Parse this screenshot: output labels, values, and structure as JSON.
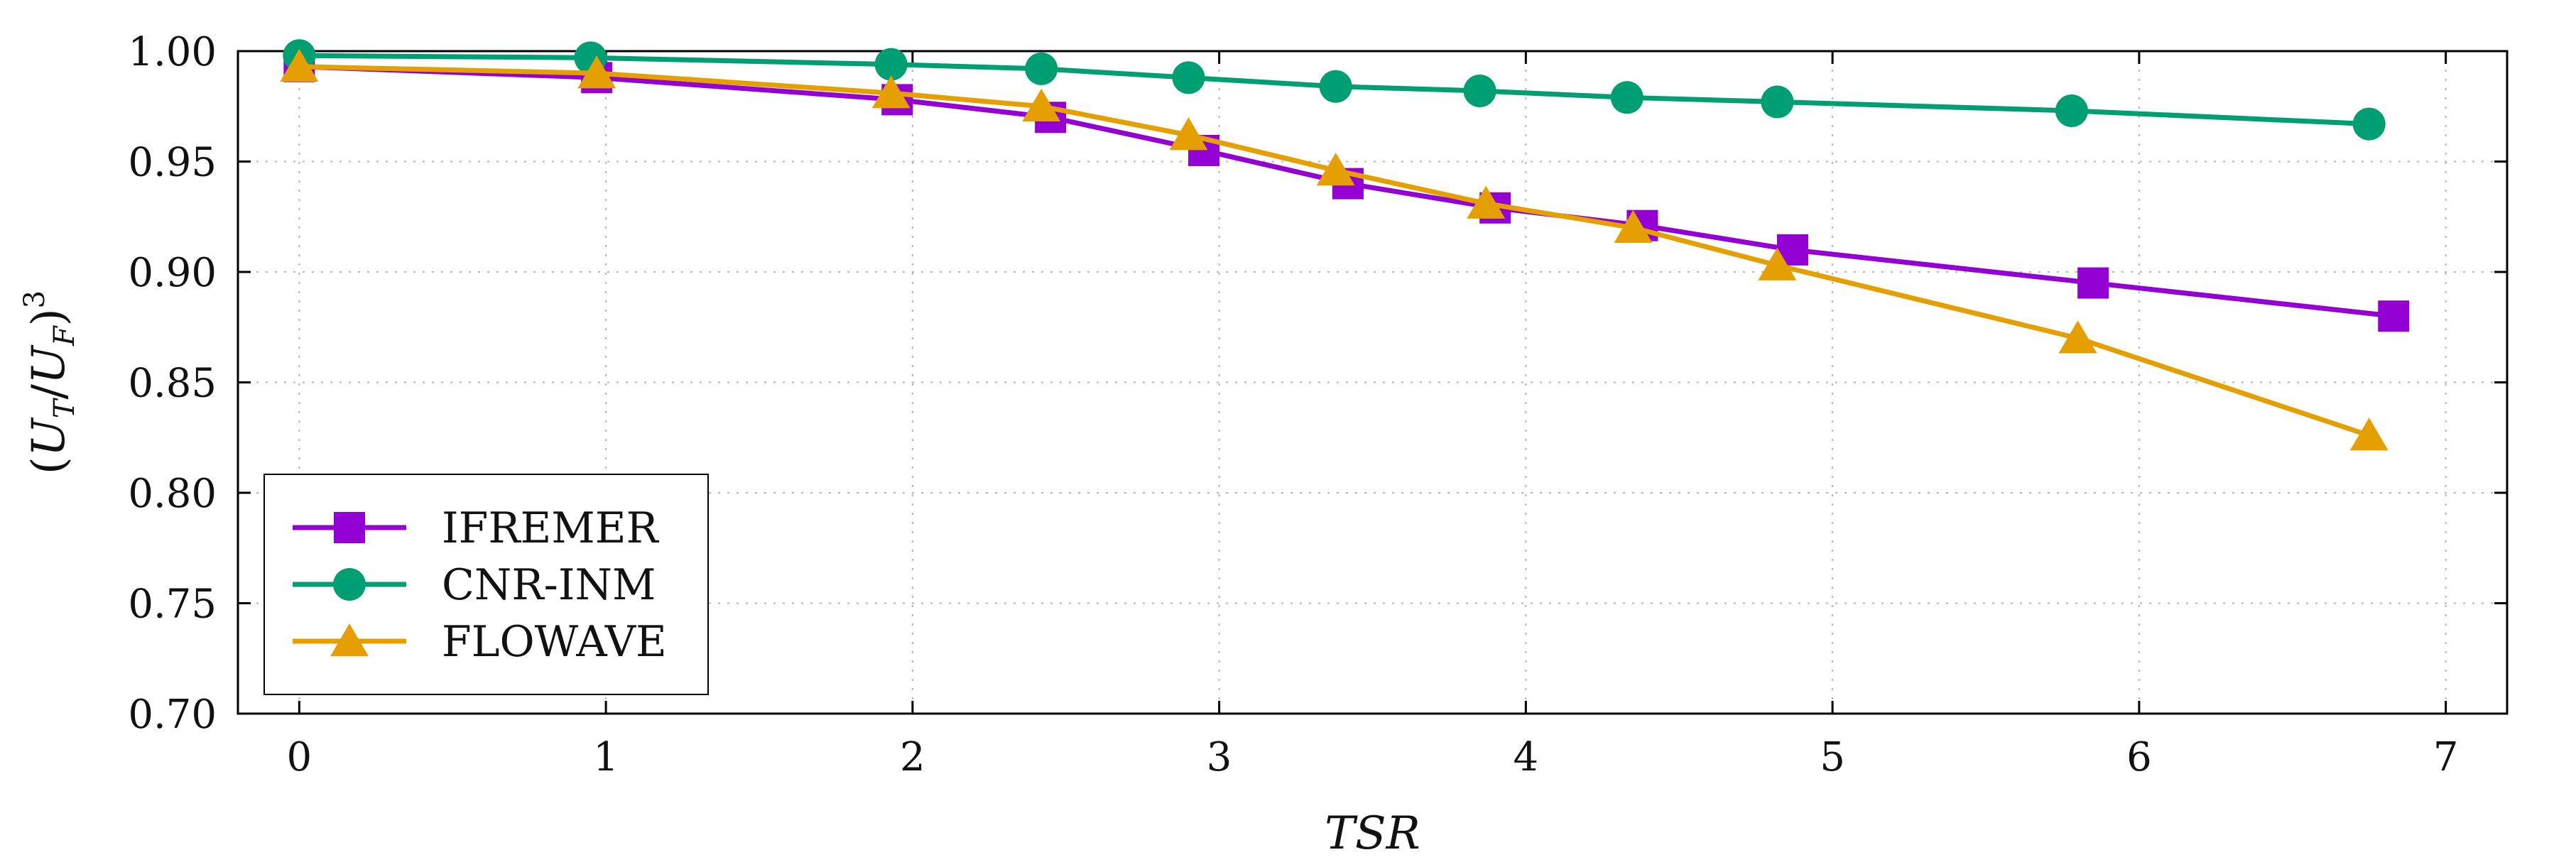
{
  "chart_data": {
    "type": "line",
    "title": "",
    "xlabel": "TSR",
    "ylabel": "(U_T/U_F)^3",
    "xlim": [
      -0.2,
      7.2
    ],
    "ylim": [
      0.7,
      1.0
    ],
    "xticks": [
      0,
      1,
      2,
      3,
      4,
      5,
      6,
      7
    ],
    "xtick_labels": [
      "0",
      "1",
      "2",
      "3",
      "4",
      "5",
      "6",
      "7"
    ],
    "yticks": [
      0.7,
      0.75,
      0.8,
      0.85,
      0.9,
      0.95,
      1.0
    ],
    "ytick_labels": [
      "0.70",
      "0.75",
      "0.80",
      "0.85",
      "0.90",
      "0.95",
      "1.00"
    ],
    "grid": true,
    "legend_position": "bottom-left",
    "series": [
      {
        "name": "IFREMER",
        "color": "#9400d3",
        "marker": "square",
        "x": [
          0,
          0.97,
          1.95,
          2.45,
          2.95,
          3.42,
          3.9,
          4.38,
          4.87,
          5.85,
          6.83
        ],
        "y": [
          0.993,
          0.988,
          0.978,
          0.97,
          0.955,
          0.94,
          0.929,
          0.921,
          0.91,
          0.895,
          0.88
        ]
      },
      {
        "name": "CNR-INM",
        "color": "#009e73",
        "marker": "circle",
        "x": [
          0,
          0.95,
          1.93,
          2.42,
          2.9,
          3.38,
          3.85,
          4.33,
          4.82,
          5.78,
          6.75
        ],
        "y": [
          0.998,
          0.997,
          0.994,
          0.992,
          0.988,
          0.984,
          0.982,
          0.979,
          0.977,
          0.973,
          0.967
        ]
      },
      {
        "name": "FLOWAVE",
        "color": "#e69f00",
        "marker": "triangle",
        "x": [
          0,
          0.97,
          1.93,
          2.42,
          2.9,
          3.38,
          3.87,
          4.35,
          4.82,
          5.8,
          6.75
        ],
        "y": [
          0.993,
          0.99,
          0.981,
          0.975,
          0.962,
          0.946,
          0.931,
          0.92,
          0.903,
          0.87,
          0.826
        ]
      }
    ]
  }
}
